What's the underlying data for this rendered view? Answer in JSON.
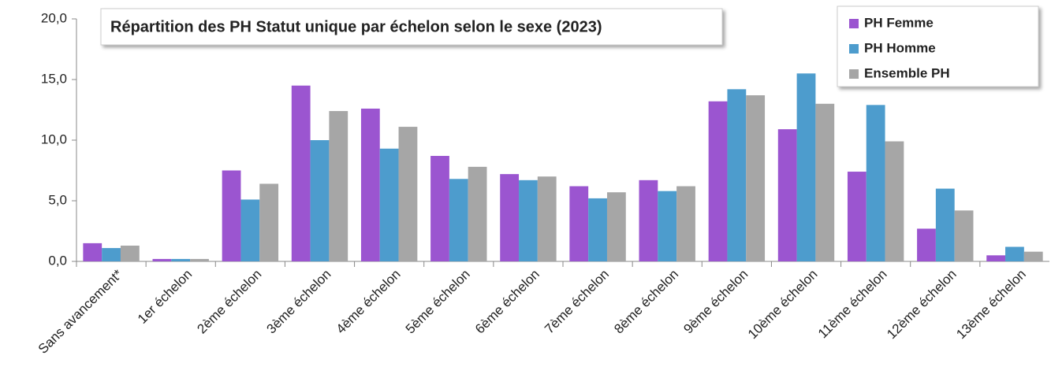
{
  "chart_data": {
    "type": "bar",
    "title": "Répartition des PH Statut unique par échelon selon le sexe (2023)",
    "categories": [
      "Sans avancement*",
      "1er échelon",
      "2ème échelon",
      "3ème échelon",
      "4ème échelon",
      "5ème échelon",
      "6ème échelon",
      "7ème échelon",
      "8ème échelon",
      "9ème échelon",
      "10ème échelon",
      "11ème échelon",
      "12ème échelon",
      "13ème échelon"
    ],
    "series": [
      {
        "name": "PH Femme",
        "color": "#9b55d0",
        "values": [
          1.5,
          0.2,
          7.5,
          14.5,
          12.6,
          8.7,
          7.2,
          6.2,
          6.7,
          13.2,
          10.9,
          7.4,
          2.7,
          0.5
        ]
      },
      {
        "name": "PH Homme",
        "color": "#4d9ccd",
        "values": [
          1.1,
          0.2,
          5.1,
          10.0,
          9.3,
          6.8,
          6.7,
          5.2,
          5.8,
          14.2,
          15.5,
          12.9,
          6.0,
          1.2
        ]
      },
      {
        "name": "Ensemble PH",
        "color": "#a6a6a6",
        "values": [
          1.3,
          0.2,
          6.4,
          12.4,
          11.1,
          7.8,
          7.0,
          5.7,
          6.2,
          13.7,
          13.0,
          9.9,
          4.2,
          0.8
        ]
      }
    ],
    "ylim": [
      0,
      20
    ],
    "yticks": [
      {
        "value": 0,
        "label": "0,0"
      },
      {
        "value": 5,
        "label": "5,0"
      },
      {
        "value": 10,
        "label": "10,0"
      },
      {
        "value": 15,
        "label": "15,0"
      },
      {
        "value": 20,
        "label": "20,0"
      }
    ],
    "legend": "top-right"
  }
}
